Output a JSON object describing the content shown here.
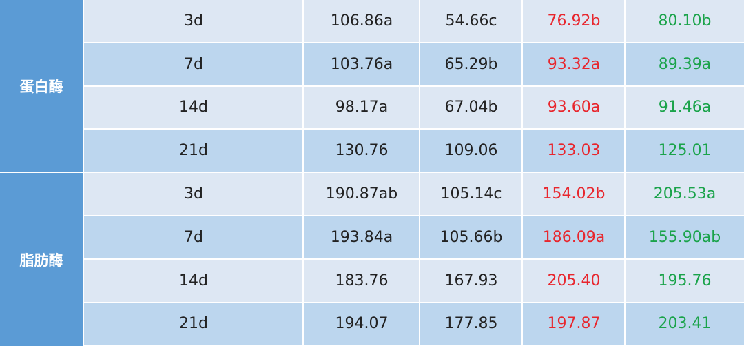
{
  "table": {
    "groups": [
      {
        "label": "蛋白酶",
        "rows": [
          [
            "3d",
            "106.86a",
            "54.66c",
            "76.92b",
            "80.10b"
          ],
          [
            "7d",
            "103.76a",
            "65.29b",
            "93.32a",
            "89.39a"
          ],
          [
            "14d",
            "98.17a",
            "67.04b",
            "93.60a",
            "91.46a"
          ],
          [
            "21d",
            "130.76",
            "109.06",
            "133.03",
            "125.01"
          ]
        ]
      },
      {
        "label": "脂肪酶",
        "rows": [
          [
            "3d",
            "190.87ab",
            "105.14c",
            "154.02b",
            "205.53a"
          ],
          [
            "7d",
            "193.84a",
            "105.66b",
            "186.09a",
            "155.90ab"
          ],
          [
            "14d",
            "183.76",
            "167.93",
            "205.40",
            "195.76"
          ],
          [
            "21d",
            "194.07",
            "177.85",
            "197.87",
            "203.41"
          ]
        ]
      }
    ]
  }
}
